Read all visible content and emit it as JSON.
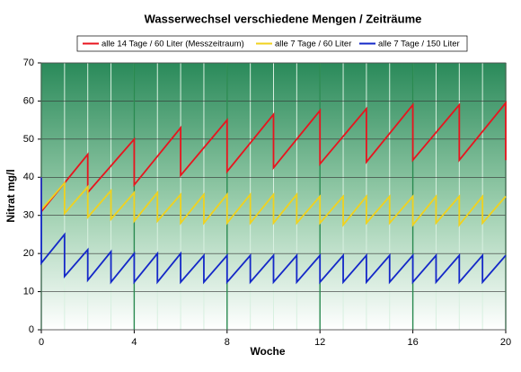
{
  "chart_data": {
    "type": "line",
    "title": "Wasserwechsel verschiedene Mengen / Zeiträume",
    "xlabel": "Woche",
    "ylabel": "Nitrat mg/l",
    "xlim": [
      0,
      20
    ],
    "xticks": [
      0,
      4,
      8,
      12,
      16,
      20
    ],
    "xminor": 1,
    "ylim": [
      0,
      70
    ],
    "yticks": [
      0,
      10,
      20,
      30,
      40,
      50,
      60,
      70
    ],
    "grid": true,
    "legend": "top",
    "series": [
      {
        "name": "alle 14 Tage / 60 Liter (Messzeitraum)",
        "color": "#e8141e",
        "x": [
          0,
          0,
          2,
          2,
          4,
          4,
          6,
          6,
          8,
          8,
          10,
          10,
          12,
          12,
          14,
          14,
          16,
          16,
          18,
          18,
          20,
          20
        ],
        "values": [
          40,
          31,
          46,
          36,
          50,
          38,
          53,
          40.5,
          55,
          41.5,
          56.5,
          42.5,
          57.5,
          43.5,
          58,
          44,
          59,
          44.5,
          59,
          44.5,
          59.5,
          44.5
        ]
      },
      {
        "name": "alle 7 Tage / 60 Liter",
        "color": "#f0d21e",
        "x": [
          0,
          0,
          1,
          1,
          2,
          2,
          3,
          3,
          4,
          4,
          5,
          5,
          6,
          6,
          7,
          7,
          8,
          8,
          9,
          9,
          10,
          10,
          11,
          11,
          12,
          12,
          13,
          13,
          14,
          14,
          15,
          15,
          16,
          16,
          17,
          17,
          18,
          18,
          19,
          19,
          20
        ],
        "values": [
          40,
          31.5,
          38.5,
          30.5,
          37.5,
          29.5,
          36.5,
          29,
          36,
          28.5,
          36,
          28.5,
          35.5,
          28,
          35.5,
          28,
          35.5,
          28,
          35.5,
          28,
          35.5,
          28,
          35.5,
          28,
          35,
          28,
          35,
          27.5,
          35,
          28,
          35,
          28,
          35,
          27.5,
          35,
          28,
          35,
          27.5,
          35,
          28,
          35
        ]
      },
      {
        "name": "alle 7 Tage / 150 Liter",
        "color": "#1428c8",
        "x": [
          0,
          0,
          1,
          1,
          2,
          2,
          3,
          3,
          4,
          4,
          5,
          5,
          6,
          6,
          7,
          7,
          8,
          8,
          9,
          9,
          10,
          10,
          11,
          11,
          12,
          12,
          13,
          13,
          14,
          14,
          15,
          15,
          16,
          16,
          17,
          17,
          18,
          18,
          19,
          19,
          20
        ],
        "values": [
          40,
          17.5,
          25,
          14,
          21,
          13,
          20.5,
          12.5,
          20,
          12.5,
          20,
          12.5,
          20,
          12.5,
          19.5,
          12.5,
          19.5,
          12.5,
          19.5,
          12.5,
          19.5,
          12.5,
          19.5,
          12.5,
          19.5,
          12.5,
          19.5,
          12.5,
          19.5,
          12.5,
          19.5,
          12.5,
          19.5,
          12.5,
          19.5,
          12.5,
          19.5,
          12.5,
          19.5,
          12.5,
          19.5
        ]
      }
    ]
  }
}
